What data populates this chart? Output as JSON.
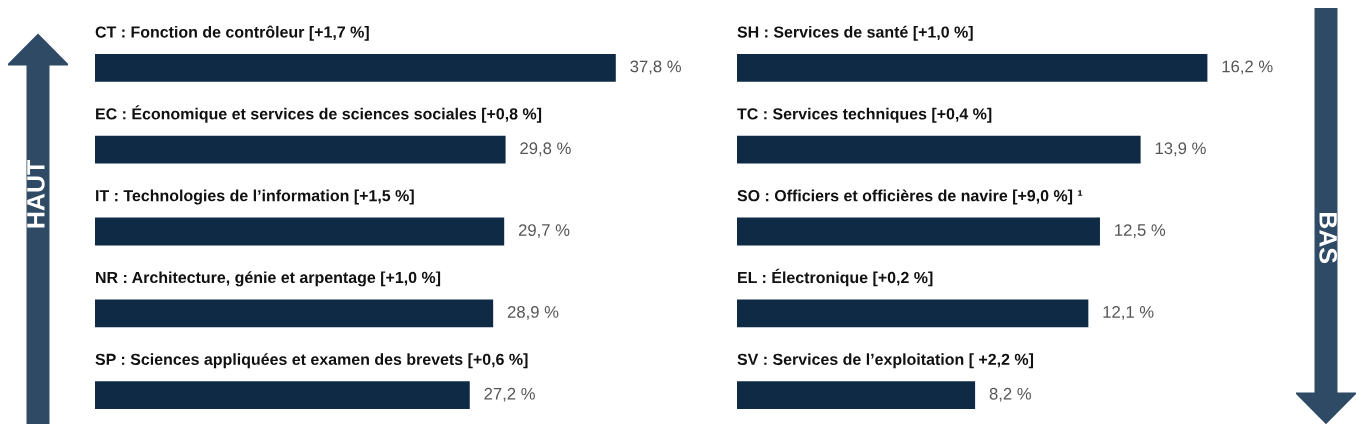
{
  "chart_data": [
    {
      "type": "bar",
      "orientation": "horizontal",
      "data_labels": true,
      "color": "#0f2a44",
      "categories": [
        "CT : Fonction de contrôleur [+1,7 %]",
        "EC : Économique et services de sciences sociales [+0,8 %]",
        "IT : Technologies de l’information [+1,5 %]",
        "NR : Architecture, génie et arpentage [+1,0 %]",
        "SP : Sciences appliquées et examen des brevets [+0,6 %]"
      ],
      "values": [
        37.8,
        29.8,
        29.7,
        28.9,
        27.2
      ],
      "value_labels": [
        "37,8 %",
        "29,8 %",
        "29,7 %",
        "28,9 %",
        "27,2 %"
      ],
      "annotations": [
        "HAUT"
      ]
    },
    {
      "type": "bar",
      "orientation": "horizontal",
      "data_labels": true,
      "color": "#0f2a44",
      "categories": [
        "SH : Services de santé [+1,0 %]",
        "TC : Services techniques [+0,4 %]",
        "SO : Officiers et officières de navire [+9,0 %] ¹",
        "EL : Électronique [+0,2 %]",
        "SV : Services de l’exploitation [ +2,2 %]"
      ],
      "values": [
        16.2,
        13.9,
        12.5,
        12.1,
        8.2
      ],
      "value_labels": [
        "16,2 %",
        "13,9 %",
        "12,5 %",
        "12,1 %",
        "8,2 %"
      ],
      "annotations": [
        "BAS"
      ]
    }
  ]
}
